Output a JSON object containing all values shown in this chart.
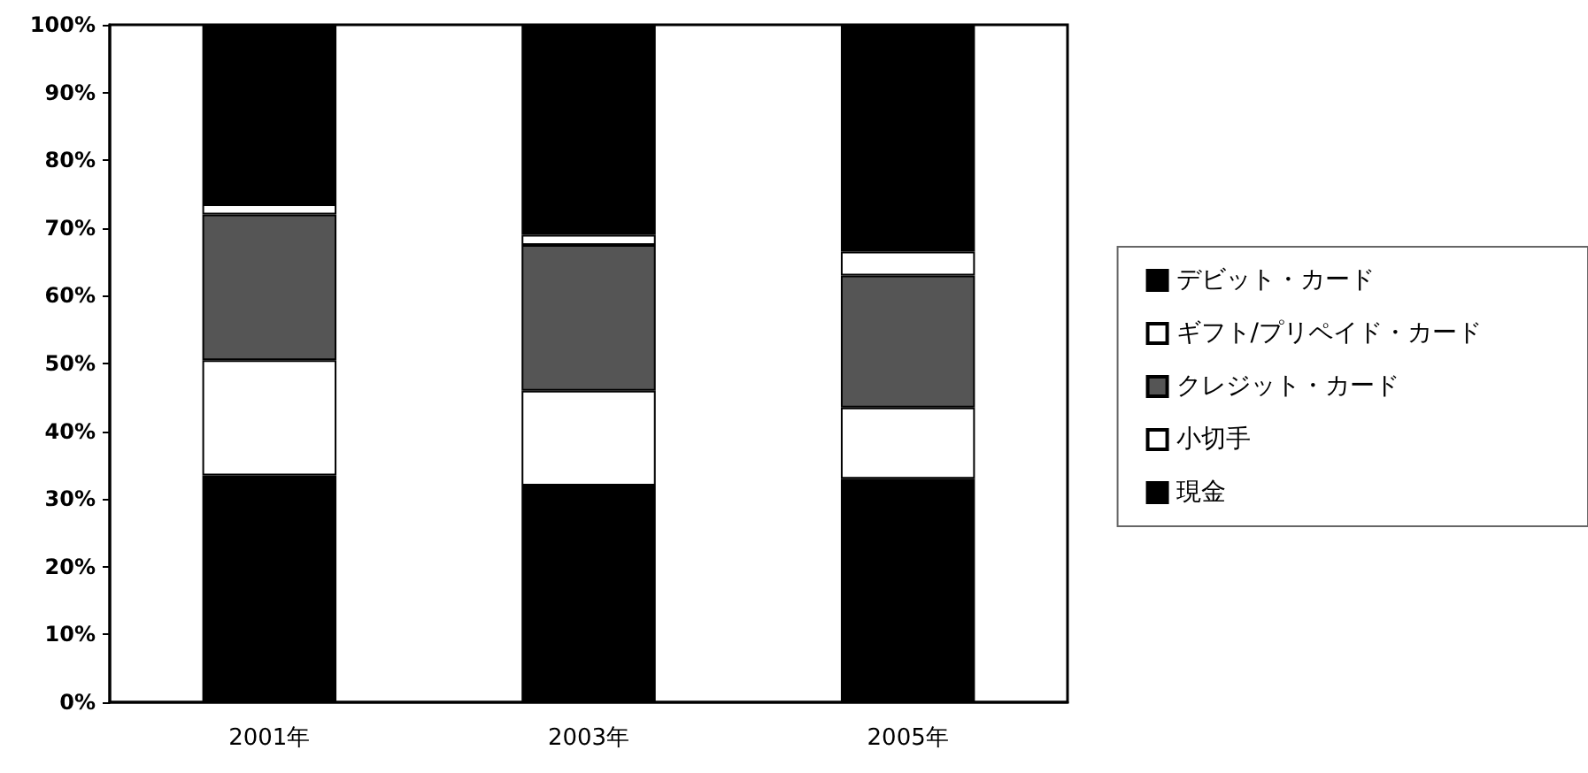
{
  "chart_data": {
    "type": "bar",
    "stacked": true,
    "categories": [
      "2001年",
      "2003年",
      "2005年"
    ],
    "series": [
      {
        "name": "現金",
        "color": "#000000",
        "values": [
          33.5,
          32,
          33
        ]
      },
      {
        "name": "小切手",
        "color": "#ffffff",
        "values": [
          17,
          14,
          10.5
        ]
      },
      {
        "name": "クレジット・カード",
        "color": "#555555",
        "values": [
          21.5,
          21.5,
          19.5
        ]
      },
      {
        "name": "ギフト/プリペイド・カード",
        "color": "#ffffff",
        "values": [
          1.5,
          1.5,
          3.5
        ]
      },
      {
        "name": "デビット・カード",
        "color": "#000000",
        "values": [
          26.5,
          31,
          33.5
        ]
      }
    ],
    "ylim": [
      0,
      100
    ],
    "yticks": [
      {
        "value": 0,
        "label": "0%"
      },
      {
        "value": 10,
        "label": "10%"
      },
      {
        "value": 20,
        "label": "20%"
      },
      {
        "value": 30,
        "label": "30%"
      },
      {
        "value": 40,
        "label": "40%"
      },
      {
        "value": 50,
        "label": "50%"
      },
      {
        "value": 60,
        "label": "60%"
      },
      {
        "value": 70,
        "label": "70%"
      },
      {
        "value": 80,
        "label": "80%"
      },
      {
        "value": 90,
        "label": "90%"
      },
      {
        "value": 100,
        "label": "100%"
      }
    ],
    "grid": false,
    "legend": "right"
  }
}
